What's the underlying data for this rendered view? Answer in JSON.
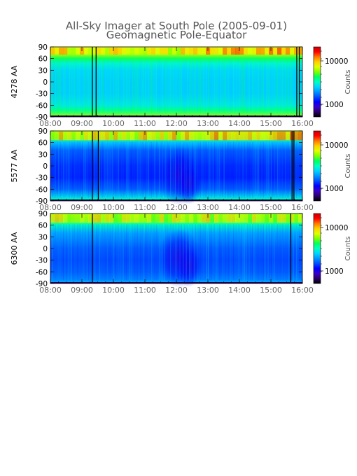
{
  "title": {
    "line1": "All-Sky Imager at South Pole (2005-09-01)",
    "line2": "Geomagnetic Pole-Equator"
  },
  "colors": {
    "colormap": [
      "#000000",
      "#2a0068",
      "#3a00c8",
      "#0000ff",
      "#0050ff",
      "#0096ff",
      "#00d4ff",
      "#00ffc0",
      "#00ff60",
      "#80ff00",
      "#e0ff00",
      "#ffd000",
      "#ff7800",
      "#ff0000",
      "#c80000"
    ],
    "data_gap": "#000000"
  },
  "chart_data": [
    {
      "type": "heatmap",
      "ylabel": "4278 AA",
      "x": [
        "08:00",
        "09:00",
        "10:00",
        "11:00",
        "12:00",
        "13:00",
        "14:00",
        "15:00",
        "16:00"
      ],
      "xlim": [
        "08:00",
        "16:00"
      ],
      "y_ticks": [
        90,
        60,
        30,
        0,
        -30,
        -60,
        -90
      ],
      "ylim": [
        -90,
        90
      ],
      "colorbar": {
        "label": "Counts",
        "ticks": [
          "10000",
          "1000"
        ],
        "scale": "log"
      },
      "data_gaps_hours": [
        9.33,
        9.45,
        15.82,
        15.9
      ]
    },
    {
      "type": "heatmap",
      "ylabel": "5577 AA",
      "x": [
        "08:00",
        "09:00",
        "10:00",
        "11:00",
        "12:00",
        "13:00",
        "14:00",
        "15:00",
        "16:00"
      ],
      "xlim": [
        "08:00",
        "16:00"
      ],
      "y_ticks": [
        90,
        60,
        30,
        0,
        -30,
        -60,
        -90
      ],
      "ylim": [
        -90,
        90
      ],
      "colorbar": {
        "label": "Counts",
        "ticks": [
          "10000",
          "1000"
        ],
        "scale": "log"
      },
      "data_gaps_hours": [
        9.33,
        9.52,
        15.67,
        15.73
      ]
    },
    {
      "type": "heatmap",
      "ylabel": "6300 AA",
      "x": [
        "08:00",
        "09:00",
        "10:00",
        "11:00",
        "12:00",
        "13:00",
        "14:00",
        "15:00",
        "16:00"
      ],
      "xlim": [
        "08:00",
        "16:00"
      ],
      "y_ticks": [
        90,
        60,
        30,
        0,
        -30,
        -60,
        -90
      ],
      "ylim": [
        -90,
        90
      ],
      "colorbar": {
        "label": "Counts",
        "ticks": [
          "10000",
          "1000"
        ],
        "scale": "log"
      },
      "data_gaps_hours": [
        9.33,
        15.63
      ]
    }
  ]
}
